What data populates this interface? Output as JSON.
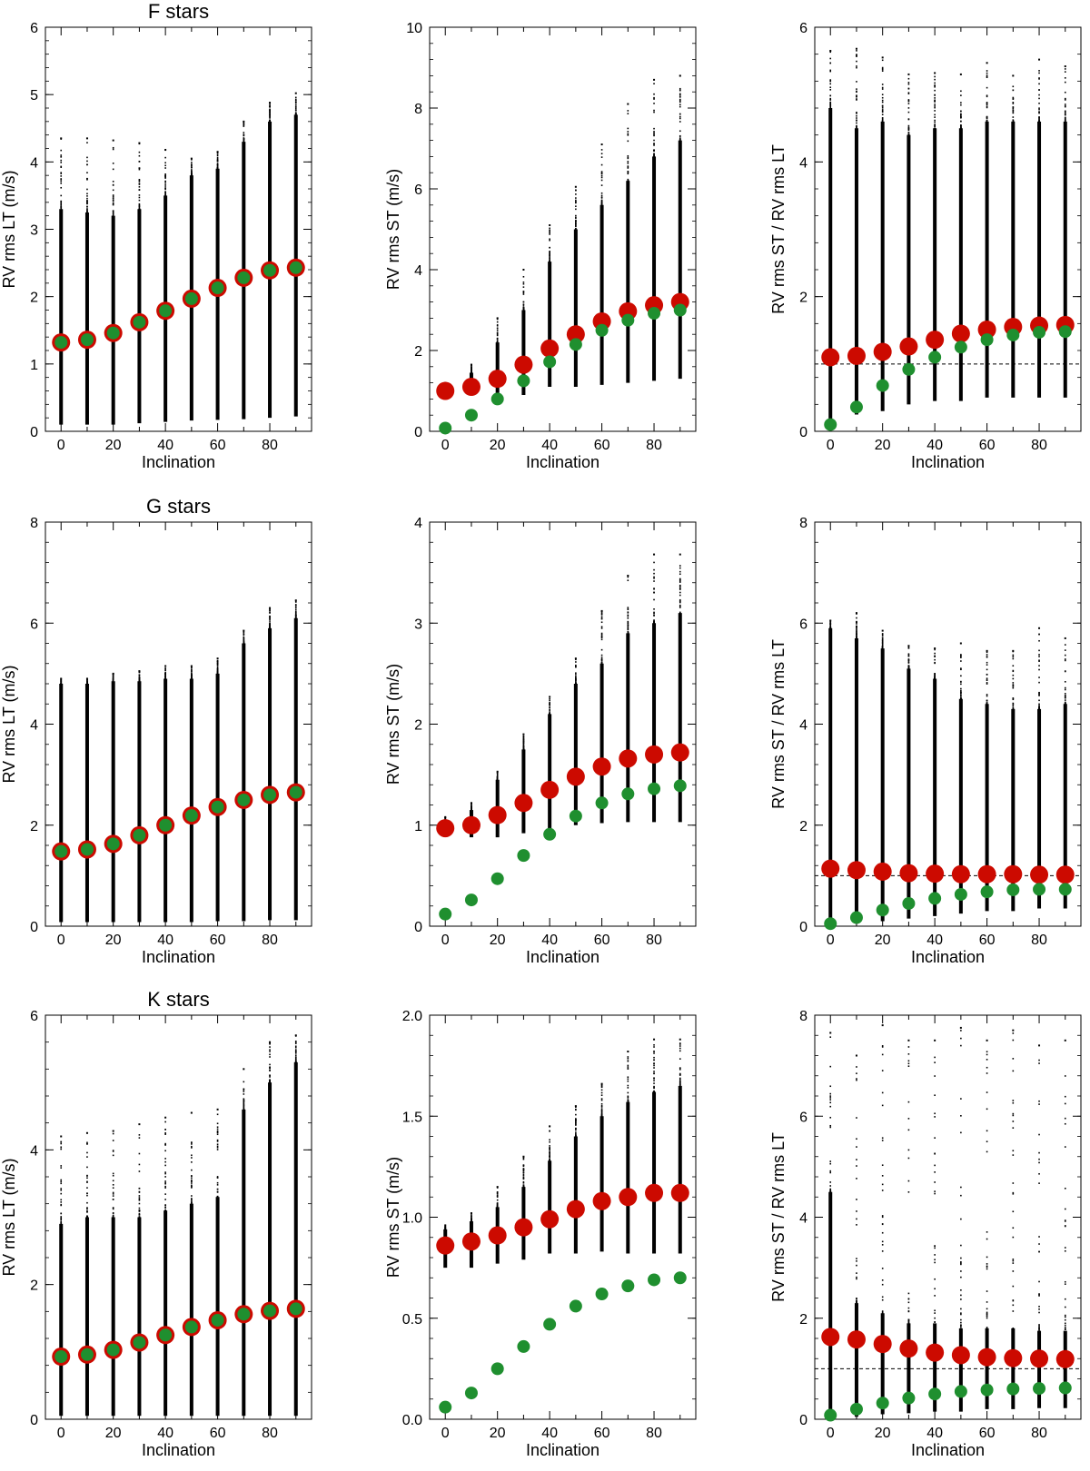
{
  "colors": {
    "red": "#cc0a00",
    "green": "#1f8f2f",
    "black": "#000000"
  },
  "chart_data": [
    {
      "type": "scatter",
      "title": "F stars",
      "xlabel": "Inclination",
      "ylabel": "RV rms LT (m/s)",
      "xlim": [
        -6,
        96
      ],
      "ylim": [
        0,
        6
      ],
      "xticks": [
        "0",
        "20",
        "40",
        "60",
        "80"
      ],
      "yticks": [
        "0",
        "1",
        "2",
        "3",
        "4",
        "5",
        "6"
      ],
      "x": [
        0,
        10,
        20,
        30,
        40,
        50,
        60,
        70,
        80,
        90
      ],
      "series": [
        {
          "color": "red",
          "marker": "large-disk",
          "values": [
            1.32,
            1.36,
            1.46,
            1.62,
            1.79,
            1.97,
            2.13,
            2.28,
            2.39,
            2.43
          ]
        },
        {
          "color": "green",
          "marker": "disk",
          "values": [
            1.32,
            1.36,
            1.46,
            1.62,
            1.79,
            1.97,
            2.13,
            2.28,
            2.39,
            2.43
          ]
        }
      ],
      "distribution": {
        "min": [
          0.1,
          0.1,
          0.1,
          0.12,
          0.14,
          0.16,
          0.17,
          0.18,
          0.2,
          0.22
        ],
        "dense_max": [
          3.3,
          3.25,
          3.2,
          3.3,
          3.5,
          3.8,
          3.9,
          4.3,
          4.6,
          4.7
        ],
        "max": [
          4.35,
          4.35,
          4.32,
          4.28,
          4.18,
          4.05,
          4.15,
          4.6,
          4.88,
          5.02
        ]
      }
    },
    {
      "type": "scatter",
      "title": "",
      "xlabel": "Inclination",
      "ylabel": "RV rms ST (m/s)",
      "xlim": [
        -6,
        96
      ],
      "ylim": [
        0,
        10
      ],
      "xticks": [
        "0",
        "20",
        "40",
        "60",
        "80"
      ],
      "yticks": [
        "0",
        "2",
        "4",
        "6",
        "8",
        "10"
      ],
      "x": [
        0,
        10,
        20,
        30,
        40,
        50,
        60,
        70,
        80,
        90
      ],
      "series": [
        {
          "color": "red",
          "marker": "large-disk",
          "values": [
            1.0,
            1.1,
            1.3,
            1.65,
            2.05,
            2.4,
            2.72,
            2.97,
            3.12,
            3.2
          ]
        },
        {
          "color": "green",
          "marker": "disk",
          "values": [
            0.08,
            0.4,
            0.8,
            1.25,
            1.72,
            2.15,
            2.5,
            2.75,
            2.92,
            3.0
          ]
        }
      ],
      "distribution": {
        "min": [
          0.8,
          0.9,
          0.95,
          0.9,
          1.1,
          1.1,
          1.15,
          1.2,
          1.25,
          1.3
        ],
        "dense_max": [
          1.1,
          1.45,
          2.2,
          3.0,
          4.2,
          5.0,
          5.6,
          6.2,
          6.8,
          7.2
        ],
        "max": [
          1.2,
          1.65,
          2.8,
          4.0,
          5.1,
          6.05,
          7.1,
          8.1,
          8.7,
          8.8
        ]
      }
    },
    {
      "type": "scatter",
      "title": "",
      "xlabel": "Inclination",
      "ylabel": "RV rms ST / RV rms LT",
      "xlim": [
        -6,
        96
      ],
      "ylim": [
        0,
        6
      ],
      "xticks": [
        "0",
        "20",
        "40",
        "60",
        "80"
      ],
      "yticks": [
        "0",
        "2",
        "4",
        "6"
      ],
      "x": [
        0,
        10,
        20,
        30,
        40,
        50,
        60,
        70,
        80,
        90
      ],
      "series": [
        {
          "color": "red",
          "marker": "large-disk",
          "values": [
            1.1,
            1.12,
            1.18,
            1.26,
            1.36,
            1.45,
            1.51,
            1.55,
            1.57,
            1.58
          ]
        },
        {
          "color": "green",
          "marker": "disk",
          "values": [
            0.1,
            0.36,
            0.68,
            0.92,
            1.1,
            1.25,
            1.36,
            1.43,
            1.47,
            1.48
          ]
        }
      ],
      "distribution": {
        "min": [
          0.05,
          0.25,
          0.3,
          0.4,
          0.45,
          0.45,
          0.5,
          0.5,
          0.5,
          0.5
        ],
        "dense_max": [
          4.8,
          4.5,
          4.6,
          4.4,
          4.5,
          4.5,
          4.6,
          4.6,
          4.6,
          4.6
        ],
        "max": [
          5.65,
          5.68,
          5.55,
          5.3,
          5.32,
          5.3,
          5.47,
          5.28,
          5.52,
          5.42
        ]
      },
      "reference_line": 1.0
    },
    {
      "type": "scatter",
      "title": "G stars",
      "xlabel": "Inclination",
      "ylabel": "RV rms LT (m/s)",
      "xlim": [
        -6,
        96
      ],
      "ylim": [
        0,
        8
      ],
      "xticks": [
        "0",
        "20",
        "40",
        "60",
        "80"
      ],
      "yticks": [
        "0",
        "2",
        "4",
        "6",
        "8"
      ],
      "x": [
        0,
        10,
        20,
        30,
        40,
        50,
        60,
        70,
        80,
        90
      ],
      "series": [
        {
          "color": "red",
          "marker": "large-disk",
          "values": [
            1.48,
            1.52,
            1.63,
            1.8,
            2.0,
            2.19,
            2.36,
            2.5,
            2.6,
            2.65
          ]
        },
        {
          "color": "green",
          "marker": "disk",
          "values": [
            1.48,
            1.52,
            1.63,
            1.8,
            2.0,
            2.19,
            2.36,
            2.5,
            2.6,
            2.65
          ]
        }
      ],
      "distribution": {
        "min": [
          0.08,
          0.08,
          0.08,
          0.08,
          0.08,
          0.08,
          0.1,
          0.1,
          0.12,
          0.12
        ],
        "dense_max": [
          4.8,
          4.8,
          4.85,
          4.85,
          4.9,
          4.9,
          5.0,
          5.6,
          5.9,
          6.1
        ],
        "max": [
          4.9,
          4.9,
          5.0,
          5.05,
          5.15,
          5.15,
          5.3,
          5.85,
          6.3,
          6.45
        ]
      }
    },
    {
      "type": "scatter",
      "title": "",
      "xlabel": "Inclination",
      "ylabel": "RV rms ST (m/s)",
      "xlim": [
        -6,
        96
      ],
      "ylim": [
        0,
        4
      ],
      "xticks": [
        "0",
        "20",
        "40",
        "60",
        "80"
      ],
      "yticks": [
        "0",
        "1",
        "2",
        "3",
        "4"
      ],
      "x": [
        0,
        10,
        20,
        30,
        40,
        50,
        60,
        70,
        80,
        90
      ],
      "series": [
        {
          "color": "red",
          "marker": "large-disk",
          "values": [
            0.97,
            1.0,
            1.1,
            1.22,
            1.35,
            1.48,
            1.58,
            1.66,
            1.7,
            1.72
          ]
        },
        {
          "color": "green",
          "marker": "disk",
          "values": [
            0.12,
            0.26,
            0.47,
            0.7,
            0.91,
            1.09,
            1.22,
            1.31,
            1.36,
            1.39
          ]
        }
      ],
      "distribution": {
        "min": [
          0.9,
          0.88,
          0.88,
          0.92,
          0.95,
          1.0,
          1.02,
          1.03,
          1.03,
          1.03
        ],
        "dense_max": [
          1.05,
          1.15,
          1.45,
          1.75,
          2.1,
          2.4,
          2.6,
          2.9,
          3.0,
          3.1
        ],
        "max": [
          1.08,
          1.22,
          1.53,
          1.9,
          2.27,
          2.65,
          3.12,
          3.47,
          3.68,
          3.68
        ]
      }
    },
    {
      "type": "scatter",
      "title": "",
      "xlabel": "Inclination",
      "ylabel": "RV rms ST / RV rms LT",
      "xlim": [
        -6,
        96
      ],
      "ylim": [
        0,
        8
      ],
      "xticks": [
        "0",
        "20",
        "40",
        "60",
        "80"
      ],
      "yticks": [
        "0",
        "2",
        "4",
        "6",
        "8"
      ],
      "x": [
        0,
        10,
        20,
        30,
        40,
        50,
        60,
        70,
        80,
        90
      ],
      "series": [
        {
          "color": "red",
          "marker": "large-disk",
          "values": [
            1.14,
            1.11,
            1.08,
            1.05,
            1.04,
            1.03,
            1.03,
            1.03,
            1.02,
            1.02
          ]
        },
        {
          "color": "green",
          "marker": "disk",
          "values": [
            0.05,
            0.17,
            0.32,
            0.45,
            0.55,
            0.63,
            0.68,
            0.72,
            0.73,
            0.73
          ]
        }
      ],
      "distribution": {
        "min": [
          0.02,
          0.05,
          0.1,
          0.15,
          0.2,
          0.25,
          0.3,
          0.3,
          0.35,
          0.35
        ],
        "dense_max": [
          5.9,
          5.7,
          5.5,
          5.1,
          4.9,
          4.5,
          4.4,
          4.3,
          4.3,
          4.4
        ],
        "max": [
          6.05,
          6.2,
          5.85,
          5.55,
          5.5,
          5.6,
          5.45,
          5.45,
          5.9,
          5.7
        ]
      },
      "reference_line": 1.0
    },
    {
      "type": "scatter",
      "title": "K stars",
      "xlabel": "Inclination",
      "ylabel": "RV rms LT (m/s)",
      "xlim": [
        -6,
        96
      ],
      "ylim": [
        0,
        6
      ],
      "xticks": [
        "0",
        "20",
        "40",
        "60",
        "80"
      ],
      "yticks": [
        "0",
        "2",
        "4",
        "6"
      ],
      "x": [
        0,
        10,
        20,
        30,
        40,
        50,
        60,
        70,
        80,
        90
      ],
      "series": [
        {
          "color": "red",
          "marker": "large-disk",
          "values": [
            0.93,
            0.96,
            1.03,
            1.14,
            1.25,
            1.37,
            1.47,
            1.56,
            1.61,
            1.64
          ]
        },
        {
          "color": "green",
          "marker": "disk",
          "values": [
            0.93,
            0.96,
            1.03,
            1.14,
            1.25,
            1.37,
            1.47,
            1.56,
            1.61,
            1.64
          ]
        }
      ],
      "distribution": {
        "min": [
          0.05,
          0.05,
          0.05,
          0.05,
          0.05,
          0.05,
          0.05,
          0.05,
          0.05,
          0.05
        ],
        "dense_max": [
          2.9,
          3.0,
          3.0,
          3.0,
          3.1,
          3.2,
          3.3,
          4.6,
          5.0,
          5.3
        ],
        "max": [
          4.2,
          4.25,
          4.28,
          4.38,
          4.48,
          4.55,
          4.6,
          5.2,
          5.6,
          5.7
        ]
      }
    },
    {
      "type": "scatter",
      "title": "",
      "xlabel": "Inclination",
      "ylabel": "RV rms ST (m/s)",
      "xlim": [
        -6,
        96
      ],
      "ylim": [
        0,
        2
      ],
      "xticks": [
        "0",
        "20",
        "40",
        "60",
        "80"
      ],
      "yticks": [
        "0.0",
        "0.5",
        "1.0",
        "1.5",
        "2.0"
      ],
      "x": [
        0,
        10,
        20,
        30,
        40,
        50,
        60,
        70,
        80,
        90
      ],
      "series": [
        {
          "color": "red",
          "marker": "large-disk",
          "values": [
            0.86,
            0.88,
            0.91,
            0.95,
            0.99,
            1.04,
            1.08,
            1.1,
            1.12,
            1.12
          ]
        },
        {
          "color": "green",
          "marker": "disk",
          "values": [
            0.06,
            0.13,
            0.25,
            0.36,
            0.47,
            0.56,
            0.62,
            0.66,
            0.69,
            0.7
          ]
        }
      ],
      "distribution": {
        "min": [
          0.75,
          0.75,
          0.77,
          0.79,
          0.82,
          0.82,
          0.83,
          0.82,
          0.82,
          0.82
        ],
        "dense_max": [
          0.94,
          0.98,
          1.05,
          1.15,
          1.28,
          1.4,
          1.5,
          1.57,
          1.62,
          1.65
        ],
        "max": [
          0.96,
          1.02,
          1.15,
          1.3,
          1.45,
          1.55,
          1.66,
          1.82,
          1.88,
          1.88
        ]
      }
    },
    {
      "type": "scatter",
      "title": "",
      "xlabel": "Inclination",
      "ylabel": "RV rms ST / RV rms LT",
      "xlim": [
        -6,
        96
      ],
      "ylim": [
        0,
        8
      ],
      "xticks": [
        "0",
        "20",
        "40",
        "60",
        "80"
      ],
      "yticks": [
        "0",
        "2",
        "4",
        "6",
        "8"
      ],
      "x": [
        0,
        10,
        20,
        30,
        40,
        50,
        60,
        70,
        80,
        90
      ],
      "series": [
        {
          "color": "red",
          "marker": "large-disk",
          "values": [
            1.63,
            1.58,
            1.49,
            1.4,
            1.32,
            1.27,
            1.23,
            1.21,
            1.2,
            1.19
          ]
        },
        {
          "color": "green",
          "marker": "disk",
          "values": [
            0.08,
            0.2,
            0.32,
            0.42,
            0.5,
            0.55,
            0.58,
            0.6,
            0.61,
            0.62
          ]
        }
      ],
      "distribution": {
        "min": [
          0.02,
          0.05,
          0.1,
          0.12,
          0.15,
          0.15,
          0.2,
          0.2,
          0.22,
          0.22
        ],
        "dense_max": [
          4.5,
          2.3,
          2.1,
          1.9,
          1.9,
          1.8,
          1.8,
          1.8,
          1.75,
          1.75
        ],
        "max": [
          7.65,
          7.2,
          7.8,
          7.5,
          7.5,
          7.75,
          7.5,
          7.7,
          7.4,
          7.5
        ]
      },
      "reference_line": 1.0
    }
  ]
}
